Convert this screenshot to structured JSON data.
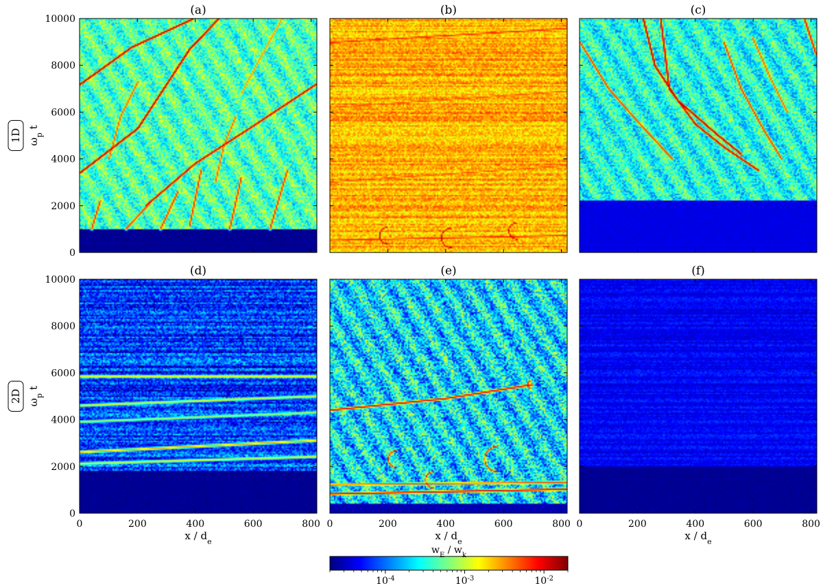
{
  "figure": {
    "colorbar": {
      "label": "w_E / w_k",
      "scale": "log",
      "range": [
        2e-05,
        0.02
      ],
      "tick_labels": [
        "10^-4",
        "10^-3",
        "10^-2"
      ],
      "colormap": "jet",
      "colors": [
        "#00007f",
        "#0000ff",
        "#0080ff",
        "#00ffff",
        "#80ff80",
        "#ffff00",
        "#ff8000",
        "#ff0000",
        "#7f0000"
      ]
    },
    "row_labels": [
      "1D",
      "2D"
    ]
  },
  "chart_data": [
    {
      "type": "heatmap",
      "panel": "(a)",
      "row": "1D",
      "xlabel": "",
      "ylabel": "ω_p t",
      "xlim": [
        0,
        820
      ],
      "ylim": [
        0,
        10000
      ],
      "xticks": [
        0,
        200,
        400,
        600,
        800
      ],
      "yticks": [
        0,
        2000,
        4000,
        6000,
        8000,
        10000
      ],
      "background_level": 0.45,
      "quiet_until": 1000,
      "quiet_level": 0.02,
      "noise_level": 0.25,
      "features": [
        {
          "kind": "line",
          "pts": [
            [
              0,
              7200
            ],
            [
              180,
              8800
            ],
            [
              390,
              10000
            ]
          ],
          "level": 0.97
        },
        {
          "kind": "line",
          "pts": [
            [
              0,
              3400
            ],
            [
              200,
              5300
            ],
            [
              380,
              8700
            ],
            [
              480,
              10000
            ]
          ],
          "level": 0.97
        },
        {
          "kind": "line",
          "pts": [
            [
              230,
              2000
            ],
            [
              400,
              3800
            ],
            [
              600,
              5400
            ],
            [
              820,
              7200
            ]
          ],
          "level": 0.95
        },
        {
          "kind": "line",
          "pts": [
            [
              40,
              1000
            ],
            [
              70,
              2200
            ]
          ],
          "level": 0.85
        },
        {
          "kind": "line",
          "pts": [
            [
              160,
              1000
            ],
            [
              250,
              2200
            ]
          ],
          "level": 0.85
        },
        {
          "kind": "line",
          "pts": [
            [
              280,
              1000
            ],
            [
              340,
              2600
            ]
          ],
          "level": 0.85
        },
        {
          "kind": "line",
          "pts": [
            [
              380,
              1100
            ],
            [
              420,
              3500
            ]
          ],
          "level": 0.85
        },
        {
          "kind": "line",
          "pts": [
            [
              520,
              1000
            ],
            [
              560,
              3200
            ]
          ],
          "level": 0.85
        },
        {
          "kind": "line",
          "pts": [
            [
              660,
              1000
            ],
            [
              720,
              3500
            ]
          ],
          "level": 0.85
        },
        {
          "kind": "line",
          "pts": [
            [
              470,
              3000
            ],
            [
              500,
              4600
            ],
            [
              540,
              5800
            ]
          ],
          "level": 0.8
        },
        {
          "kind": "line",
          "pts": [
            [
              100,
              4000
            ],
            [
              140,
              5800
            ],
            [
              200,
              7300
            ]
          ],
          "level": 0.8
        },
        {
          "kind": "line",
          "pts": [
            [
              560,
              6800
            ],
            [
              620,
              8200
            ],
            [
              700,
              10000
            ]
          ],
          "level": 0.75
        }
      ]
    },
    {
      "type": "heatmap",
      "panel": "(b)",
      "row": "1D",
      "xlabel": "",
      "ylabel": "",
      "xlim": [
        0,
        820
      ],
      "ylim": [
        0,
        10000
      ],
      "xticks": [
        0,
        200,
        400,
        600,
        800
      ],
      "yticks": [
        0,
        2000,
        4000,
        6000,
        8000,
        10000
      ],
      "background_level": 0.7,
      "quiet_until": 0,
      "quiet_level": 0.35,
      "noise_level": 0.15,
      "features": [
        {
          "kind": "arc",
          "cx": 200,
          "cy": 700,
          "r": 120,
          "level": 0.95
        },
        {
          "kind": "arc",
          "cx": 420,
          "cy": 600,
          "r": 140,
          "level": 0.95
        },
        {
          "kind": "arc",
          "cx": 650,
          "cy": 900,
          "r": 120,
          "level": 0.95
        },
        {
          "kind": "line",
          "pts": [
            [
              0,
              500
            ],
            [
              820,
              700
            ]
          ],
          "level": 0.85
        },
        {
          "kind": "line",
          "pts": [
            [
              0,
              9000
            ],
            [
              820,
              9600
            ]
          ],
          "level": 0.85
        },
        {
          "kind": "line",
          "pts": [
            [
              0,
              6200
            ],
            [
              820,
              6900
            ]
          ],
          "level": 0.8
        },
        {
          "kind": "line",
          "pts": [
            [
              0,
              3000
            ],
            [
              820,
              3700
            ]
          ],
          "level": 0.8
        }
      ]
    },
    {
      "type": "heatmap",
      "panel": "(c)",
      "row": "1D",
      "xlabel": "",
      "ylabel": "",
      "xlim": [
        0,
        820
      ],
      "ylim": [
        0,
        10000
      ],
      "xticks": [
        0,
        200,
        400,
        600,
        800
      ],
      "yticks": [
        0,
        2000,
        4000,
        6000,
        8000,
        10000
      ],
      "background_level": 0.4,
      "quiet_until": 2200,
      "quiet_level": 0.1,
      "noise_level": 0.25,
      "features": [
        {
          "kind": "line",
          "pts": [
            [
              220,
              10000
            ],
            [
              260,
              8000
            ],
            [
              340,
              6500
            ],
            [
              480,
              5000
            ],
            [
              560,
              4200
            ]
          ],
          "level": 0.97
        },
        {
          "kind": "line",
          "pts": [
            [
              280,
              10000
            ],
            [
              310,
              7000
            ],
            [
              400,
              5500
            ],
            [
              500,
              4500
            ],
            [
              620,
              3500
            ]
          ],
          "level": 0.95
        },
        {
          "kind": "line",
          "pts": [
            [
              0,
              9000
            ],
            [
              100,
              7000
            ],
            [
              200,
              5600
            ],
            [
              320,
              4000
            ]
          ],
          "level": 0.85
        },
        {
          "kind": "line",
          "pts": [
            [
              600,
              9200
            ],
            [
              660,
              7500
            ],
            [
              720,
              6000
            ]
          ],
          "level": 0.8
        },
        {
          "kind": "line",
          "pts": [
            [
              780,
              10000
            ],
            [
              820,
              8500
            ]
          ],
          "level": 0.9
        },
        {
          "kind": "line",
          "pts": [
            [
              500,
              9000
            ],
            [
              560,
              7000
            ],
            [
              640,
              5200
            ],
            [
              700,
              4000
            ]
          ],
          "level": 0.85
        }
      ]
    },
    {
      "type": "heatmap",
      "panel": "(d)",
      "row": "2D",
      "xlabel": "x / d_e",
      "ylabel": "ω_p t",
      "xlim": [
        0,
        820
      ],
      "ylim": [
        0,
        10000
      ],
      "xticks": [
        0,
        200,
        400,
        600,
        800
      ],
      "yticks": [
        0,
        2000,
        4000,
        6000,
        8000,
        10000
      ],
      "background_level": 0.18,
      "quiet_until": 1800,
      "quiet_level": 0.02,
      "noise_level": 0.25,
      "features": [
        {
          "kind": "line",
          "pts": [
            [
              0,
              5850
            ],
            [
              820,
              5850
            ]
          ],
          "level": 0.65
        },
        {
          "kind": "line",
          "pts": [
            [
              0,
              4600
            ],
            [
              820,
              5000
            ]
          ],
          "level": 0.6
        },
        {
          "kind": "line",
          "pts": [
            [
              0,
              3900
            ],
            [
              820,
              4300
            ]
          ],
          "level": 0.55
        },
        {
          "kind": "line",
          "pts": [
            [
              0,
              2600
            ],
            [
              820,
              3100
            ]
          ],
          "level": 0.7
        },
        {
          "kind": "line",
          "pts": [
            [
              0,
              2100
            ],
            [
              820,
              2400
            ]
          ],
          "level": 0.6
        }
      ]
    },
    {
      "type": "heatmap",
      "panel": "(e)",
      "row": "2D",
      "xlabel": "x / d_e",
      "ylabel": "",
      "xlim": [
        0,
        820
      ],
      "ylim": [
        0,
        10000
      ],
      "xticks": [
        0,
        200,
        400,
        600,
        800
      ],
      "yticks": [
        0,
        2000,
        4000,
        6000,
        8000,
        10000
      ],
      "background_level": 0.35,
      "quiet_until": 400,
      "quiet_level": 0.05,
      "noise_level": 0.35,
      "features": [
        {
          "kind": "line",
          "pts": [
            [
              0,
              4400
            ],
            [
              400,
              4900
            ],
            [
              700,
              5500
            ]
          ],
          "level": 0.9
        },
        {
          "kind": "arc",
          "cx": 700,
          "cy": 5500,
          "r": 60,
          "level": 0.9
        },
        {
          "kind": "arc",
          "cx": 230,
          "cy": 2300,
          "r": 120,
          "level": 0.9
        },
        {
          "kind": "arc",
          "cx": 580,
          "cy": 2300,
          "r": 180,
          "level": 0.9
        },
        {
          "kind": "arc",
          "cx": 360,
          "cy": 1400,
          "r": 120,
          "level": 0.9
        },
        {
          "kind": "line",
          "pts": [
            [
              0,
              800
            ],
            [
              820,
              1000
            ]
          ],
          "level": 0.9
        },
        {
          "kind": "line",
          "pts": [
            [
              0,
              1200
            ],
            [
              820,
              1300
            ]
          ],
          "level": 0.8
        }
      ]
    },
    {
      "type": "heatmap",
      "panel": "(f)",
      "row": "2D",
      "xlabel": "x / d_e",
      "ylabel": "",
      "xlim": [
        0,
        820
      ],
      "ylim": [
        0,
        10000
      ],
      "xticks": [
        0,
        200,
        400,
        600,
        800
      ],
      "yticks": [
        0,
        2000,
        4000,
        6000,
        8000,
        10000
      ],
      "background_level": 0.12,
      "quiet_until": 2000,
      "quiet_level": 0.02,
      "noise_level": 0.08,
      "features": []
    }
  ]
}
